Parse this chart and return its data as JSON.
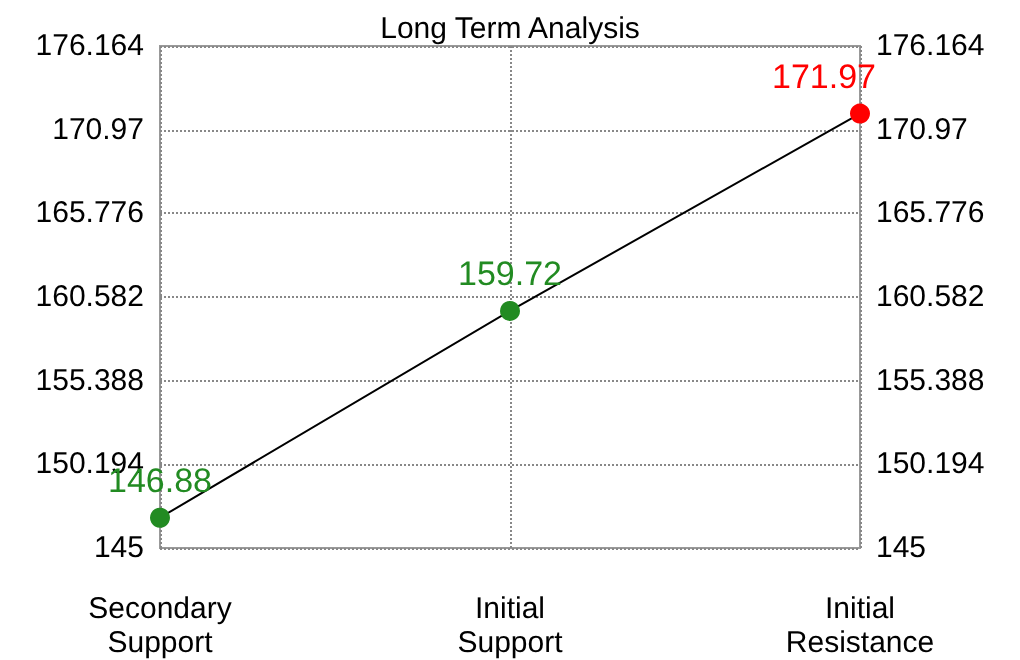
{
  "chart_data": {
    "type": "line",
    "title": "Long Term Analysis",
    "categories": [
      "Secondary\nSupport",
      "Initial\nSupport",
      "Initial\nResistance"
    ],
    "series": [
      {
        "color": "#000000",
        "values": [
          146.88,
          159.72,
          171.97
        ]
      }
    ],
    "colors": [
      "#228b22",
      "#228b22",
      "#ff0000"
    ],
    "ylim": [
      145,
      176.164
    ],
    "yticks": [
      145,
      150.194,
      155.388,
      160.582,
      165.776,
      170.97,
      176.164
    ],
    "y2lim": [
      145,
      176.164
    ],
    "y2ticks": [
      145,
      150.194,
      155.388,
      160.582,
      165.776,
      170.97,
      176.164
    ],
    "data_labels": true,
    "grid": true,
    "marker": "circle",
    "line_style": "solid"
  }
}
